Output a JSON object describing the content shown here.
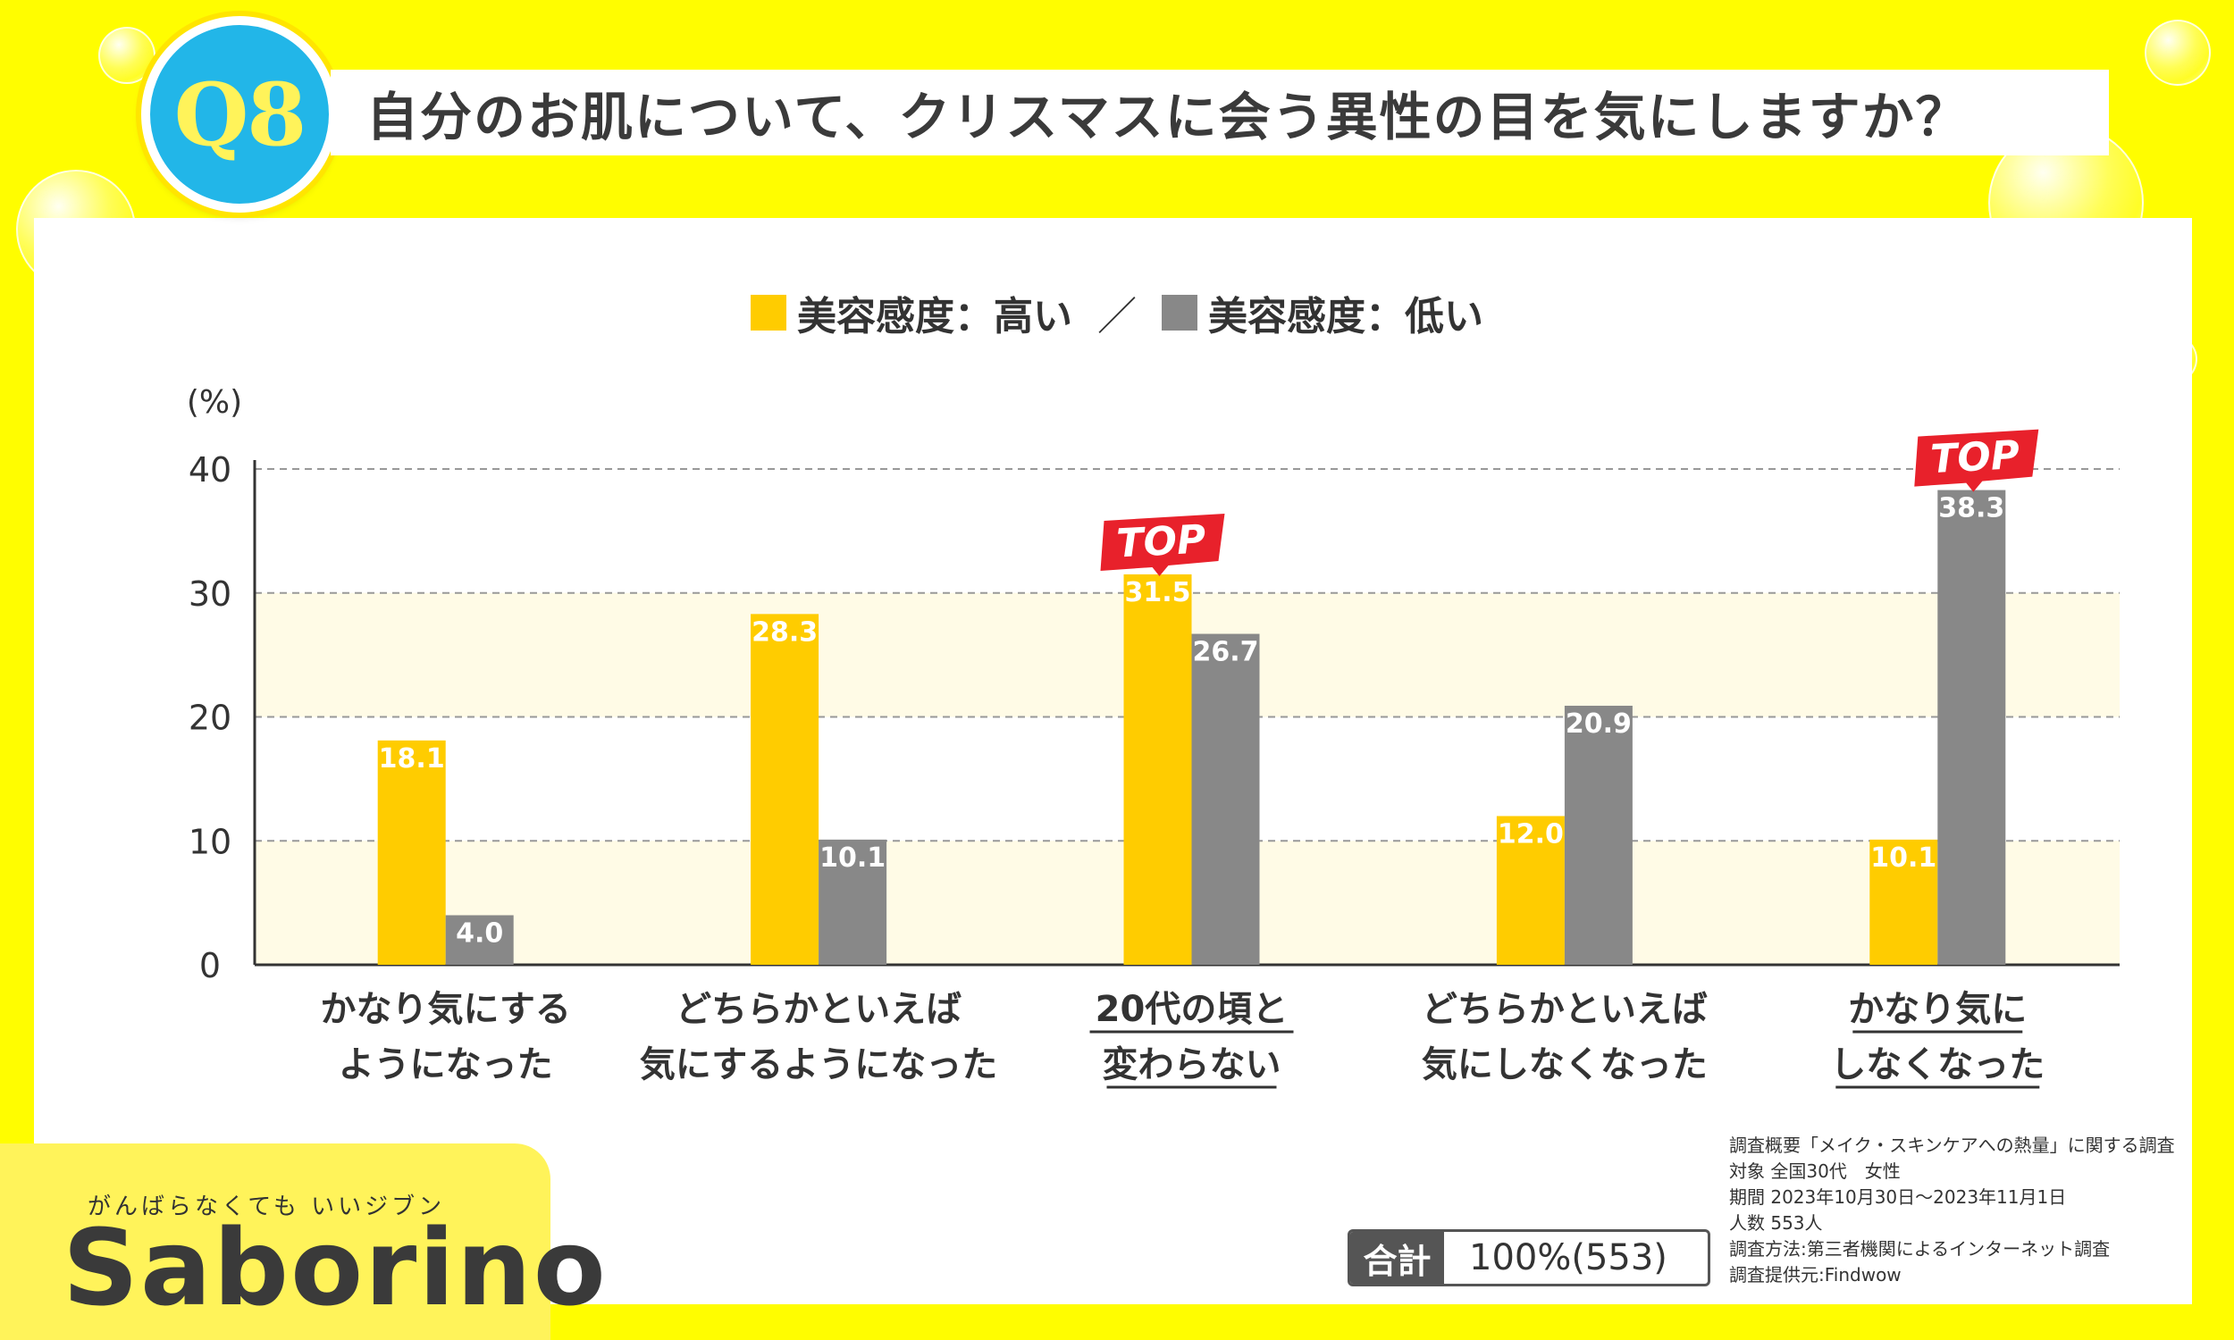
{
  "header": {
    "badge": "Q8",
    "title": "自分のお肌について、クリスマスに会う異性の目を気にしますか？"
  },
  "colors": {
    "high": "#ffcc00",
    "low": "#888888",
    "top_badge": "#e8212b"
  },
  "chart_data": {
    "type": "bar",
    "unit_label": "(%)",
    "ylim": [
      0,
      40
    ],
    "yticks": [
      0,
      10,
      20,
      30,
      40
    ],
    "grid": true,
    "legend_position": "top-center",
    "categories": [
      [
        "かなり気にする",
        "ようになった"
      ],
      [
        "どちらかといえば",
        "気にするようになった"
      ],
      [
        "20代の頃と",
        "変わらない"
      ],
      [
        "どちらかといえば",
        "気にしなくなった"
      ],
      [
        "かなり気に",
        "しなくなった"
      ]
    ],
    "underlined_categories": [
      2,
      4
    ],
    "series": [
      {
        "name": "美容感度：高い",
        "values": [
          18.1,
          28.3,
          31.5,
          12.0,
          10.1
        ]
      },
      {
        "name": "美容感度：低い",
        "values": [
          4.0,
          10.1,
          26.7,
          20.9,
          38.3
        ]
      }
    ],
    "value_labels": [
      [
        "18.1",
        "28.3",
        "31.5",
        "12.0",
        "10.1"
      ],
      [
        "4.0",
        "10.1",
        "26.7",
        "20.9",
        "38.3"
      ]
    ],
    "top_badges": [
      {
        "category": 2,
        "series": 0,
        "text": "TOP"
      },
      {
        "category": 4,
        "series": 1,
        "text": "TOP"
      }
    ]
  },
  "legend": {
    "high": "美容感度：高い",
    "separator": "／",
    "low": "美容感度：低い"
  },
  "total": {
    "label": "合計",
    "value": "100%(553)"
  },
  "source": [
    "調査概要「メイク・スキンケアへの熱量」に関する調査",
    "対象 全国30代　女性",
    "期間 2023年10月30日～2023年11月1日",
    "人数 553人",
    "調査方法:第三者機関によるインターネット調査",
    "調査提供元:Findwow"
  ],
  "brand": {
    "tagline": "がんばらなくても いいジブン",
    "name": "Saborino"
  }
}
